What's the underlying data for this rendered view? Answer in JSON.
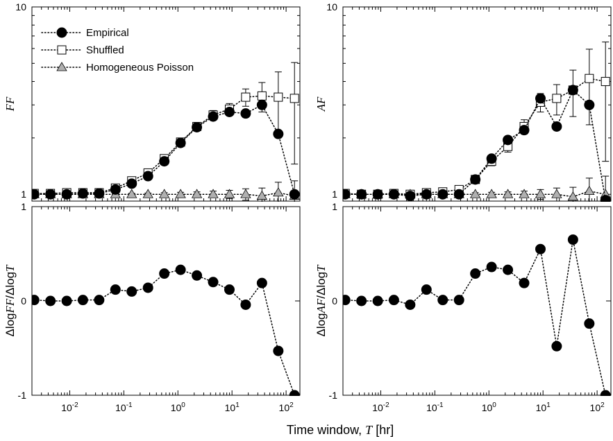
{
  "chart_data": [
    {
      "type": "scatter",
      "panel": "top-left",
      "ylabel": "FF",
      "xscale": "log",
      "yscale": "log",
      "xlim": [
        0.002,
        180
      ],
      "ylim": [
        0.92,
        10
      ],
      "y_tick_labels": [
        "1",
        "10"
      ],
      "legend": {
        "placement": "top-left",
        "entries": [
          "Empirical",
          "Shuffled",
          "Homogeneous Poisson"
        ]
      },
      "series": [
        {
          "name": "Empirical",
          "marker": "filled-circle",
          "color": "#000000",
          "x": [
            0.0022,
            0.0044,
            0.0088,
            0.0175,
            0.035,
            0.07,
            0.14,
            0.28,
            0.56,
            1.12,
            2.24,
            4.48,
            8.96,
            17.9,
            35.8,
            71.7,
            143
          ],
          "y": [
            1.0,
            1.0,
            1.0,
            1.01,
            1.01,
            1.06,
            1.14,
            1.25,
            1.5,
            1.88,
            2.28,
            2.6,
            2.75,
            2.7,
            3.0,
            2.1,
            1.0
          ]
        },
        {
          "name": "Shuffled",
          "marker": "open-square",
          "color": "#000000",
          "x": [
            0.0022,
            0.0044,
            0.0088,
            0.0175,
            0.035,
            0.07,
            0.14,
            0.28,
            0.56,
            1.12,
            2.24,
            4.48,
            8.96,
            17.9,
            35.8,
            71.7,
            143
          ],
          "y": [
            1.01,
            1.01,
            1.02,
            1.02,
            1.02,
            1.08,
            1.18,
            1.3,
            1.55,
            1.9,
            2.3,
            2.65,
            2.85,
            3.3,
            3.35,
            3.3,
            3.25
          ],
          "err": [
            0.01,
            0.01,
            0.01,
            0.01,
            0.02,
            0.02,
            0.03,
            0.04,
            0.05,
            0.07,
            0.1,
            0.15,
            0.2,
            0.35,
            0.6,
            1.2,
            1.8
          ]
        },
        {
          "name": "Homogeneous Poisson",
          "marker": "gray-triangle",
          "color": "#b0b0b0",
          "x": [
            0.0022,
            0.0044,
            0.0088,
            0.0175,
            0.035,
            0.07,
            0.14,
            0.28,
            0.56,
            1.12,
            2.24,
            4.48,
            8.96,
            17.9,
            35.8,
            71.7,
            143
          ],
          "y": [
            1.0,
            1.0,
            1.0,
            1.0,
            1.0,
            1.0,
            1.0,
            1.0,
            1.0,
            1.0,
            1.0,
            1.0,
            1.0,
            1.0,
            0.98,
            1.02,
            0.98
          ],
          "err": [
            0.005,
            0.005,
            0.005,
            0.006,
            0.008,
            0.01,
            0.012,
            0.015,
            0.02,
            0.025,
            0.03,
            0.04,
            0.05,
            0.07,
            0.1,
            0.14,
            0.2
          ]
        }
      ]
    },
    {
      "type": "scatter",
      "panel": "top-right",
      "ylabel": "AF",
      "xscale": "log",
      "yscale": "log",
      "xlim": [
        0.002,
        180
      ],
      "ylim": [
        0.92,
        10
      ],
      "y_tick_labels": [
        "1",
        "10"
      ],
      "series": [
        {
          "name": "Empirical",
          "marker": "filled-circle",
          "color": "#000000",
          "x": [
            0.0022,
            0.0044,
            0.0088,
            0.0175,
            0.035,
            0.07,
            0.14,
            0.28,
            0.56,
            1.12,
            2.24,
            4.48,
            8.96,
            17.9,
            35.8,
            71.7,
            143
          ],
          "y": [
            1.0,
            1.0,
            1.0,
            1.0,
            0.98,
            1.0,
            1.0,
            1.0,
            1.2,
            1.55,
            1.95,
            2.2,
            3.25,
            2.3,
            3.6,
            3.0,
            0.93
          ]
        },
        {
          "name": "Shuffled",
          "marker": "open-square",
          "color": "#000000",
          "x": [
            0.0022,
            0.0044,
            0.0088,
            0.0175,
            0.035,
            0.07,
            0.14,
            0.28,
            0.56,
            1.12,
            2.24,
            4.48,
            8.96,
            17.9,
            35.8,
            71.7,
            143
          ],
          "y": [
            1.01,
            1.0,
            1.0,
            1.01,
            1.0,
            1.02,
            1.03,
            1.06,
            1.2,
            1.5,
            1.8,
            2.3,
            3.1,
            3.25,
            3.6,
            4.15,
            4.0
          ],
          "err": [
            0.01,
            0.01,
            0.01,
            0.01,
            0.02,
            0.02,
            0.03,
            0.04,
            0.05,
            0.08,
            0.12,
            0.2,
            0.35,
            0.6,
            1.0,
            1.8,
            2.5
          ]
        },
        {
          "name": "Homogeneous Poisson",
          "marker": "gray-triangle",
          "color": "#b0b0b0",
          "x": [
            0.0022,
            0.0044,
            0.0088,
            0.0175,
            0.035,
            0.07,
            0.14,
            0.28,
            0.56,
            1.12,
            2.24,
            4.48,
            8.96,
            17.9,
            35.8,
            71.7,
            143
          ],
          "y": [
            1.0,
            1.0,
            1.0,
            1.0,
            1.0,
            1.0,
            1.0,
            1.0,
            1.0,
            1.0,
            1.0,
            1.0,
            1.0,
            1.0,
            0.97,
            1.04,
            1.0
          ],
          "err": [
            0.005,
            0.005,
            0.005,
            0.006,
            0.008,
            0.01,
            0.012,
            0.015,
            0.02,
            0.025,
            0.03,
            0.04,
            0.06,
            0.08,
            0.12,
            0.18,
            0.25
          ]
        }
      ]
    },
    {
      "type": "scatter",
      "panel": "bottom-left",
      "ylabel_prefix": "Δlog",
      "ylabel_var1": "FF",
      "ylabel_mid": "/Δlog",
      "ylabel_var2": "T",
      "xscale": "log",
      "yscale": "linear",
      "xlim": [
        0.002,
        180
      ],
      "ylim": [
        -1,
        1
      ],
      "x_tick_labels": [
        "10-2",
        "10-1",
        "100",
        "101",
        "102"
      ],
      "y_tick_labels": [
        "1",
        "0",
        "-1"
      ],
      "series": [
        {
          "name": "Empirical",
          "marker": "filled-circle",
          "color": "#000000",
          "x": [
            0.0022,
            0.0044,
            0.0088,
            0.0175,
            0.035,
            0.07,
            0.14,
            0.28,
            0.56,
            1.12,
            2.24,
            4.48,
            8.96,
            17.9,
            35.8,
            71.7,
            143
          ],
          "y": [
            0.01,
            0.0,
            0.0,
            0.01,
            0.01,
            0.12,
            0.1,
            0.14,
            0.29,
            0.33,
            0.27,
            0.2,
            0.12,
            -0.04,
            0.19,
            -0.53,
            -1.0
          ]
        }
      ]
    },
    {
      "type": "scatter",
      "panel": "bottom-right",
      "ylabel_prefix": "Δlog",
      "ylabel_var1": "AF",
      "ylabel_mid": "/Δlog",
      "ylabel_var2": "T",
      "xscale": "log",
      "yscale": "linear",
      "xlim": [
        0.002,
        180
      ],
      "ylim": [
        -1,
        1
      ],
      "x_tick_labels": [
        "10-2",
        "10-1",
        "100",
        "101",
        "102"
      ],
      "y_tick_labels": [
        "1",
        "0",
        "-1"
      ],
      "series": [
        {
          "name": "Empirical",
          "marker": "filled-circle",
          "color": "#000000",
          "x": [
            0.0022,
            0.0044,
            0.0088,
            0.0175,
            0.035,
            0.07,
            0.14,
            0.28,
            0.56,
            1.12,
            2.24,
            4.48,
            8.96,
            17.9,
            35.8,
            71.7,
            143
          ],
          "y": [
            0.01,
            0.0,
            0.0,
            0.01,
            -0.04,
            0.12,
            0.01,
            0.01,
            0.29,
            0.36,
            0.33,
            0.19,
            0.55,
            -0.48,
            0.65,
            -0.24,
            -1.0
          ]
        }
      ]
    }
  ],
  "xlabel_prefix": "Time window, ",
  "xlabel_var": "T",
  "xlabel_suffix": " [hr]"
}
